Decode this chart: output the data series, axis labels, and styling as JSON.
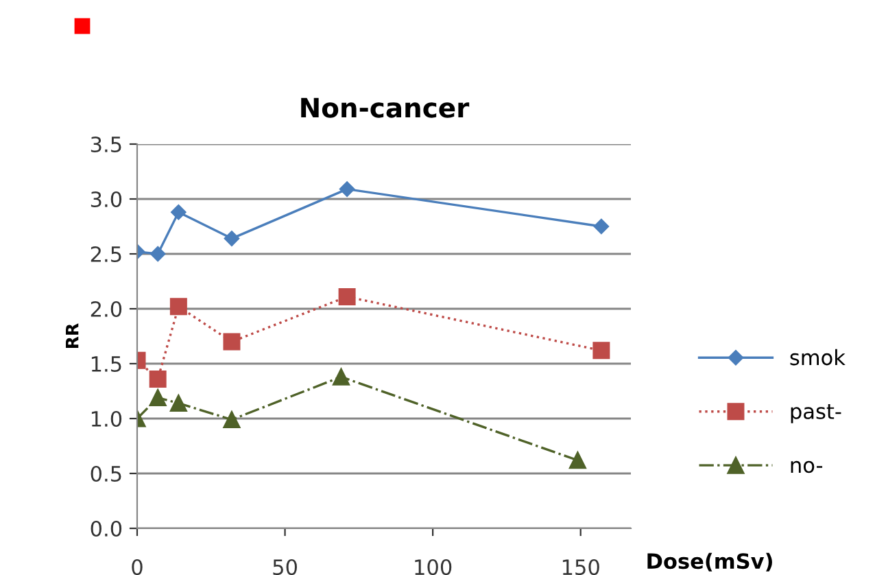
{
  "chart_data": {
    "type": "line",
    "title": "Non-cancer",
    "xlabel": "Dose(mSv)",
    "ylabel": "RR",
    "xlim": [
      0,
      167
    ],
    "xticks": [
      0,
      50,
      100,
      150
    ],
    "ylim": [
      0,
      3.5
    ],
    "yticks": [
      {
        "value": 0,
        "label": "0.0"
      },
      {
        "value": 0.5,
        "label": "0.5"
      },
      {
        "value": 1,
        "label": "1.0"
      },
      {
        "value": 1.5,
        "label": "1.5"
      },
      {
        "value": 2,
        "label": "2.0"
      },
      {
        "value": 2.5,
        "label": "2.5"
      },
      {
        "value": 3,
        "label": "3.0"
      },
      {
        "value": 3.5,
        "label": "3.5"
      }
    ],
    "grid": "y",
    "legend": "right",
    "series": [
      {
        "name": "smok",
        "color": "#4a7ebb",
        "marker": "diamond",
        "line_style": "solid",
        "x": [
          0,
          7,
          14,
          32,
          71,
          157
        ],
        "values": [
          2.52,
          2.5,
          2.88,
          2.64,
          3.09,
          2.75
        ]
      },
      {
        "name": "past-",
        "color": "#be4b48",
        "marker": "square",
        "line_style": "dotted",
        "x": [
          0,
          7,
          14,
          32,
          71,
          157
        ],
        "values": [
          1.53,
          1.36,
          2.02,
          1.7,
          2.11,
          1.62
        ]
      },
      {
        "name": "no-",
        "color": "#4f6228",
        "marker": "triangle",
        "line_style": "dashdot",
        "x": [
          0,
          7,
          14,
          32,
          69,
          149
        ],
        "values": [
          1.0,
          1.19,
          1.14,
          0.99,
          1.38,
          0.62
        ]
      }
    ]
  }
}
